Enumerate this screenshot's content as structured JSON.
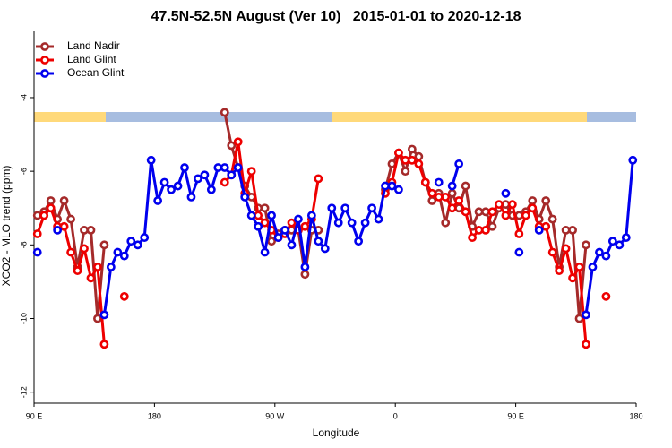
{
  "chart_data": {
    "type": "line",
    "title": "47.5N-52.5N August (Ver 10)   2015-01-01 to 2020-12-18",
    "x_label": "Longitude",
    "y_label": "XCO2 - MLO trend (ppm)",
    "xlim": [
      90,
      540
    ],
    "xticks": [
      {
        "value": 90,
        "label": "90 E"
      },
      {
        "value": 180,
        "label": "180"
      },
      {
        "value": 270,
        "label": "90 W"
      },
      {
        "value": 360,
        "label": "0"
      },
      {
        "value": 450,
        "label": "90 E"
      },
      {
        "value": 540,
        "label": "180"
      }
    ],
    "ylim": [
      -12.3,
      -2.2
    ],
    "yticks": [
      -12,
      -10,
      -8,
      -6,
      -4
    ],
    "legend": "top-left",
    "series": [
      {
        "name": "Land Nadir",
        "color": "#a52a2a",
        "x": [
          92.5,
          97.5,
          102.5,
          107.5,
          112.5,
          117.5,
          122.5,
          127.5,
          132.5,
          137.5,
          142.5,
          null,
          232.5,
          237.5,
          242.5,
          247.5,
          252.5,
          257.5,
          262.5,
          267.5,
          272.5,
          277.5,
          282.5,
          287.5,
          292.5,
          297.5,
          302.5,
          null,
          352.5,
          357.5,
          362.5,
          367.5,
          372.5,
          377.5,
          382.5,
          387.5,
          392.5,
          397.5,
          402.5,
          407.5,
          412.5,
          417.5,
          422.5,
          427.5,
          432.5,
          437.5,
          442.5,
          447.5,
          452.5,
          457.5,
          462.5,
          467.5,
          472.5,
          477.5,
          482.5,
          487.5,
          492.5,
          497.5,
          502.5
        ],
        "values": [
          -7.2,
          -7.1,
          -6.8,
          -7.3,
          -6.8,
          -7.3,
          -8.6,
          -7.6,
          -7.6,
          -10.0,
          -8.0,
          null,
          -4.4,
          -5.3,
          -5.9,
          -6.4,
          -6.7,
          -7.0,
          -7.0,
          -7.9,
          -7.7,
          -7.6,
          -7.6,
          -7.6,
          -8.8,
          -7.6,
          -7.6,
          null,
          -6.5,
          -5.8,
          -5.5,
          -6.0,
          -5.4,
          -5.6,
          -6.3,
          -6.8,
          -6.6,
          -7.4,
          -6.6,
          -7.0,
          -6.4,
          -7.5,
          -7.1,
          -7.1,
          -7.5,
          -7.0,
          -6.9,
          -7.2,
          -7.2,
          -7.1,
          -6.8,
          -7.3,
          -6.8,
          -7.3,
          -8.6,
          -7.6,
          -7.6,
          -10.0,
          -8.0
        ]
      },
      {
        "name": "Land Glint",
        "color": "#ee0000",
        "x": [
          92.5,
          97.5,
          102.5,
          107.5,
          112.5,
          117.5,
          122.5,
          127.5,
          132.5,
          137.5,
          142.5,
          null,
          157.5,
          null,
          232.5,
          237.5,
          242.5,
          247.5,
          252.5,
          257.5,
          262.5,
          267.5,
          272.5,
          277.5,
          282.5,
          287.5,
          292.5,
          297.5,
          302.5,
          null,
          352.5,
          357.5,
          362.5,
          367.5,
          372.5,
          377.5,
          382.5,
          387.5,
          392.5,
          397.5,
          402.5,
          407.5,
          412.5,
          417.5,
          422.5,
          427.5,
          432.5,
          437.5,
          442.5,
          447.5,
          452.5,
          457.5,
          462.5,
          467.5,
          472.5,
          477.5,
          482.5,
          487.5,
          492.5,
          497.5,
          502.5,
          null,
          517.5
        ],
        "values": [
          -7.7,
          -7.2,
          -7.0,
          -7.5,
          -7.5,
          -8.2,
          -8.7,
          -8.1,
          -8.9,
          -8.6,
          -10.7,
          null,
          -9.4,
          null,
          -6.3,
          -6.1,
          -5.2,
          -6.6,
          -6.0,
          -7.2,
          -7.4,
          -7.6,
          -7.8,
          -7.7,
          -7.4,
          -7.6,
          -7.5,
          -7.3,
          -6.2,
          null,
          -6.6,
          -6.3,
          -5.5,
          -5.7,
          -5.7,
          -5.8,
          -6.3,
          -6.6,
          -6.7,
          -6.7,
          -7.0,
          -6.8,
          -7.1,
          -7.8,
          -7.6,
          -7.6,
          -7.1,
          -6.9,
          -7.2,
          -6.9,
          -7.7,
          -7.2,
          -7.0,
          -7.5,
          -7.5,
          -8.2,
          -8.7,
          -8.1,
          -8.9,
          -8.6,
          -10.7,
          null,
          -9.4
        ]
      },
      {
        "name": "Ocean Glint",
        "color": "#0000ee",
        "x": [
          92.5,
          null,
          107.5,
          null,
          142.5,
          147.5,
          152.5,
          157.5,
          162.5,
          167.5,
          172.5,
          177.5,
          182.5,
          187.5,
          192.5,
          197.5,
          202.5,
          207.5,
          212.5,
          217.5,
          222.5,
          227.5,
          232.5,
          237.5,
          242.5,
          247.5,
          252.5,
          257.5,
          262.5,
          267.5,
          272.5,
          277.5,
          282.5,
          287.5,
          292.5,
          297.5,
          302.5,
          307.5,
          312.5,
          317.5,
          322.5,
          327.5,
          332.5,
          337.5,
          342.5,
          347.5,
          352.5,
          357.5,
          362.5,
          null,
          392.5,
          null,
          402.5,
          407.5,
          null,
          442.5,
          null,
          452.5,
          null,
          467.5,
          null,
          502.5,
          507.5,
          512.5,
          517.5,
          522.5,
          527.5,
          532.5,
          537.5
        ],
        "values": [
          -8.2,
          null,
          -7.6,
          null,
          -9.9,
          -8.6,
          -8.2,
          -8.3,
          -7.9,
          -8.0,
          -7.8,
          -5.7,
          -6.8,
          -6.3,
          -6.5,
          -6.4,
          -5.9,
          -6.7,
          -6.2,
          -6.1,
          -6.5,
          -5.9,
          -5.9,
          -6.1,
          -5.9,
          -6.7,
          -7.2,
          -7.5,
          -8.2,
          -7.2,
          -7.8,
          -7.6,
          -8.0,
          -7.3,
          -8.6,
          -7.2,
          -7.9,
          -8.1,
          -7.0,
          -7.4,
          -7.0,
          -7.4,
          -7.9,
          -7.4,
          -7.0,
          -7.3,
          -6.4,
          -6.4,
          -6.5,
          null,
          -6.3,
          null,
          -6.4,
          -5.8,
          null,
          -6.6,
          null,
          -8.2,
          null,
          -7.6,
          null,
          -9.9,
          -8.6,
          -8.2,
          -8.3,
          -7.9,
          -8.0,
          -7.8,
          -5.7
        ]
      }
    ]
  }
}
